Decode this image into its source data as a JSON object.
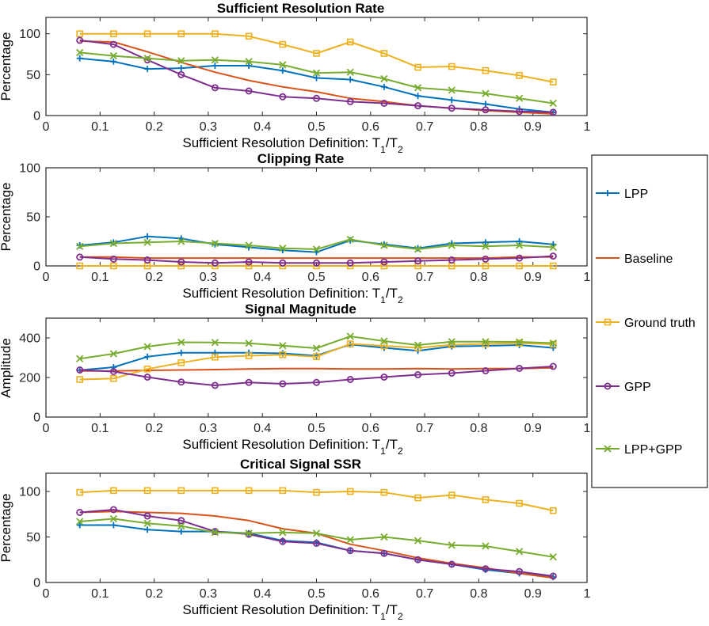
{
  "legend": {
    "entries": [
      {
        "name": "LPP",
        "color": "#0072BD",
        "marker": "plus"
      },
      {
        "name": "Baseline",
        "color": "#D95319",
        "marker": "none"
      },
      {
        "name": "Ground truth",
        "color": "#EDB120",
        "marker": "square"
      },
      {
        "name": "GPP",
        "color": "#7E2F8E",
        "marker": "circle"
      },
      {
        "name": "LPP+GPP",
        "color": "#77AC30",
        "marker": "x"
      }
    ]
  },
  "chart_data": [
    {
      "type": "line",
      "title": "Sufficient Resolution Rate",
      "xlabel": "Sufficient Resolution Definition: T",
      "xlabel_sub1": "1",
      "xlabel_mid": "/T",
      "xlabel_sub2": "2",
      "ylabel": "Percentage",
      "xlim": [
        0,
        1
      ],
      "ylim": [
        0,
        120
      ],
      "xticks": [
        0,
        0.1,
        0.2,
        0.3,
        0.4,
        0.5,
        0.6,
        0.7,
        0.8,
        0.9,
        1
      ],
      "xtick_labels": [
        "0",
        "0.1",
        "0.2",
        "0.3",
        "0.4",
        "0.5",
        "0.6",
        "0.7",
        "0.8",
        "0.9",
        "1"
      ],
      "yticks": [
        0,
        50,
        100
      ],
      "ytick_labels": [
        "0",
        "50",
        "100"
      ],
      "x": [
        0.0625,
        0.125,
        0.1875,
        0.25,
        0.3125,
        0.375,
        0.4375,
        0.5,
        0.5625,
        0.625,
        0.6875,
        0.75,
        0.8125,
        0.875,
        0.9375
      ],
      "series": [
        {
          "name": "LPP",
          "values": [
            70,
            66,
            57,
            58,
            61,
            61,
            55,
            46,
            44,
            35,
            24,
            19,
            14,
            8,
            4
          ]
        },
        {
          "name": "Baseline",
          "values": [
            91,
            90,
            78,
            65,
            53,
            43,
            35,
            29,
            21,
            17,
            12,
            9,
            6,
            4,
            2
          ]
        },
        {
          "name": "Ground truth",
          "values": [
            100,
            100,
            100,
            100,
            100,
            97,
            87,
            76,
            90,
            76,
            59,
            60,
            55,
            49,
            41
          ]
        },
        {
          "name": "GPP",
          "values": [
            92,
            87,
            68,
            50,
            34,
            30,
            23,
            21,
            17,
            15,
            12,
            9,
            7,
            5,
            4
          ]
        },
        {
          "name": "LPP+GPP",
          "values": [
            77,
            73,
            70,
            67,
            68,
            66,
            62,
            52,
            53,
            45,
            34,
            31,
            27,
            21,
            15
          ]
        }
      ]
    },
    {
      "type": "line",
      "title": "Clipping Rate",
      "xlabel": "Sufficient Resolution Definition: T",
      "xlabel_sub1": "1",
      "xlabel_mid": "/T",
      "xlabel_sub2": "2",
      "ylabel": "Percentage",
      "xlim": [
        0,
        1
      ],
      "ylim": [
        0,
        100
      ],
      "xticks": [
        0,
        0.1,
        0.2,
        0.3,
        0.4,
        0.5,
        0.6,
        0.7,
        0.8,
        0.9,
        1
      ],
      "xtick_labels": [
        "0",
        "0.1",
        "0.2",
        "0.3",
        "0.4",
        "0.5",
        "0.6",
        "0.7",
        "0.8",
        "0.9",
        "1"
      ],
      "yticks": [
        0,
        50,
        100
      ],
      "ytick_labels": [
        "0",
        "50",
        "100"
      ],
      "x": [
        0.0625,
        0.125,
        0.1875,
        0.25,
        0.3125,
        0.375,
        0.4375,
        0.5,
        0.5625,
        0.625,
        0.6875,
        0.75,
        0.8125,
        0.875,
        0.9375
      ],
      "series": [
        {
          "name": "LPP",
          "values": [
            21,
            24,
            30,
            28,
            22,
            19,
            16,
            14,
            26,
            22,
            18,
            23,
            24,
            25,
            22
          ]
        },
        {
          "name": "Baseline",
          "values": [
            9,
            9,
            8,
            8,
            8,
            8,
            8,
            8,
            8,
            8,
            8,
            8,
            8,
            9,
            9
          ]
        },
        {
          "name": "Ground truth",
          "values": [
            0,
            0,
            0,
            0,
            0,
            0,
            0,
            0,
            0,
            0,
            0,
            0,
            0,
            0,
            0
          ]
        },
        {
          "name": "GPP",
          "values": [
            9,
            7,
            6,
            4,
            3,
            4,
            3,
            3,
            3,
            4,
            5,
            6,
            7,
            8,
            10
          ]
        },
        {
          "name": "LPP+GPP",
          "values": [
            20,
            23,
            24,
            25,
            23,
            21,
            18,
            17,
            27,
            21,
            17,
            21,
            20,
            21,
            19
          ]
        }
      ]
    },
    {
      "type": "line",
      "title": "Signal Magnitude",
      "xlabel": "Sufficient Resolution Definition: T",
      "xlabel_sub1": "1",
      "xlabel_mid": "/T",
      "xlabel_sub2": "2",
      "ylabel": "Amplitude",
      "xlim": [
        0,
        1
      ],
      "ylim": [
        0,
        500
      ],
      "xticks": [
        0,
        0.1,
        0.2,
        0.3,
        0.4,
        0.5,
        0.6,
        0.7,
        0.8,
        0.9,
        1
      ],
      "xtick_labels": [
        "0",
        "0.1",
        "0.2",
        "0.3",
        "0.4",
        "0.5",
        "0.6",
        "0.7",
        "0.8",
        "0.9",
        "1"
      ],
      "yticks": [
        0,
        200,
        400
      ],
      "ytick_labels": [
        "0",
        "200",
        "400"
      ],
      "x": [
        0.0625,
        0.125,
        0.1875,
        0.25,
        0.3125,
        0.375,
        0.4375,
        0.5,
        0.5625,
        0.625,
        0.6875,
        0.75,
        0.8125,
        0.875,
        0.9375
      ],
      "series": [
        {
          "name": "LPP",
          "values": [
            237,
            252,
            305,
            325,
            325,
            325,
            322,
            310,
            367,
            350,
            335,
            357,
            360,
            364,
            350
          ]
        },
        {
          "name": "Baseline",
          "values": [
            233,
            233,
            236,
            238,
            240,
            243,
            245,
            245,
            243,
            243,
            245,
            243,
            245,
            245,
            249
          ]
        },
        {
          "name": "Ground truth",
          "values": [
            190,
            195,
            243,
            275,
            303,
            310,
            315,
            305,
            370,
            360,
            350,
            365,
            370,
            374,
            368
          ]
        },
        {
          "name": "GPP",
          "values": [
            238,
            230,
            202,
            177,
            160,
            175,
            168,
            175,
            190,
            202,
            214,
            222,
            234,
            246,
            256
          ]
        },
        {
          "name": "LPP+GPP",
          "values": [
            295,
            320,
            356,
            378,
            377,
            373,
            361,
            348,
            408,
            384,
            364,
            381,
            381,
            380,
            374
          ]
        }
      ]
    },
    {
      "type": "line",
      "title": "Critical Signal SSR",
      "xlabel": "Sufficient Resolution Definition: T",
      "xlabel_sub1": "1",
      "xlabel_mid": "/T",
      "xlabel_sub2": "2",
      "ylabel": "Percentage",
      "xlim": [
        0,
        1
      ],
      "ylim": [
        0,
        120
      ],
      "xticks": [
        0,
        0.1,
        0.2,
        0.3,
        0.4,
        0.5,
        0.6,
        0.7,
        0.8,
        0.9,
        1
      ],
      "xtick_labels": [
        "0",
        "0.1",
        "0.2",
        "0.3",
        "0.4",
        "0.5",
        "0.6",
        "0.7",
        "0.8",
        "0.9",
        "1"
      ],
      "yticks": [
        0,
        50,
        100
      ],
      "ytick_labels": [
        "0",
        "50",
        "100"
      ],
      "x": [
        0.0625,
        0.125,
        0.1875,
        0.25,
        0.3125,
        0.375,
        0.4375,
        0.5,
        0.5625,
        0.625,
        0.6875,
        0.75,
        0.8125,
        0.875,
        0.9375
      ],
      "series": [
        {
          "name": "LPP",
          "values": [
            63,
            63,
            58,
            56,
            56,
            54,
            46,
            44,
            35,
            32,
            25,
            20,
            14,
            10,
            6
          ]
        },
        {
          "name": "Baseline",
          "values": [
            77,
            78,
            77,
            76,
            73,
            68,
            59,
            54,
            42,
            35,
            27,
            21,
            16,
            10,
            5
          ]
        },
        {
          "name": "Ground truth",
          "values": [
            99,
            101,
            101,
            101,
            101,
            101,
            101,
            99,
            100,
            99,
            93,
            96,
            91,
            87,
            79
          ]
        },
        {
          "name": "GPP",
          "values": [
            77,
            80,
            73,
            68,
            56,
            53,
            45,
            43,
            35,
            32,
            25,
            20,
            15,
            12,
            7
          ]
        },
        {
          "name": "LPP+GPP",
          "values": [
            67,
            70,
            65,
            62,
            55,
            54,
            55,
            54,
            47,
            50,
            46,
            41,
            40,
            34,
            28
          ]
        }
      ]
    }
  ]
}
